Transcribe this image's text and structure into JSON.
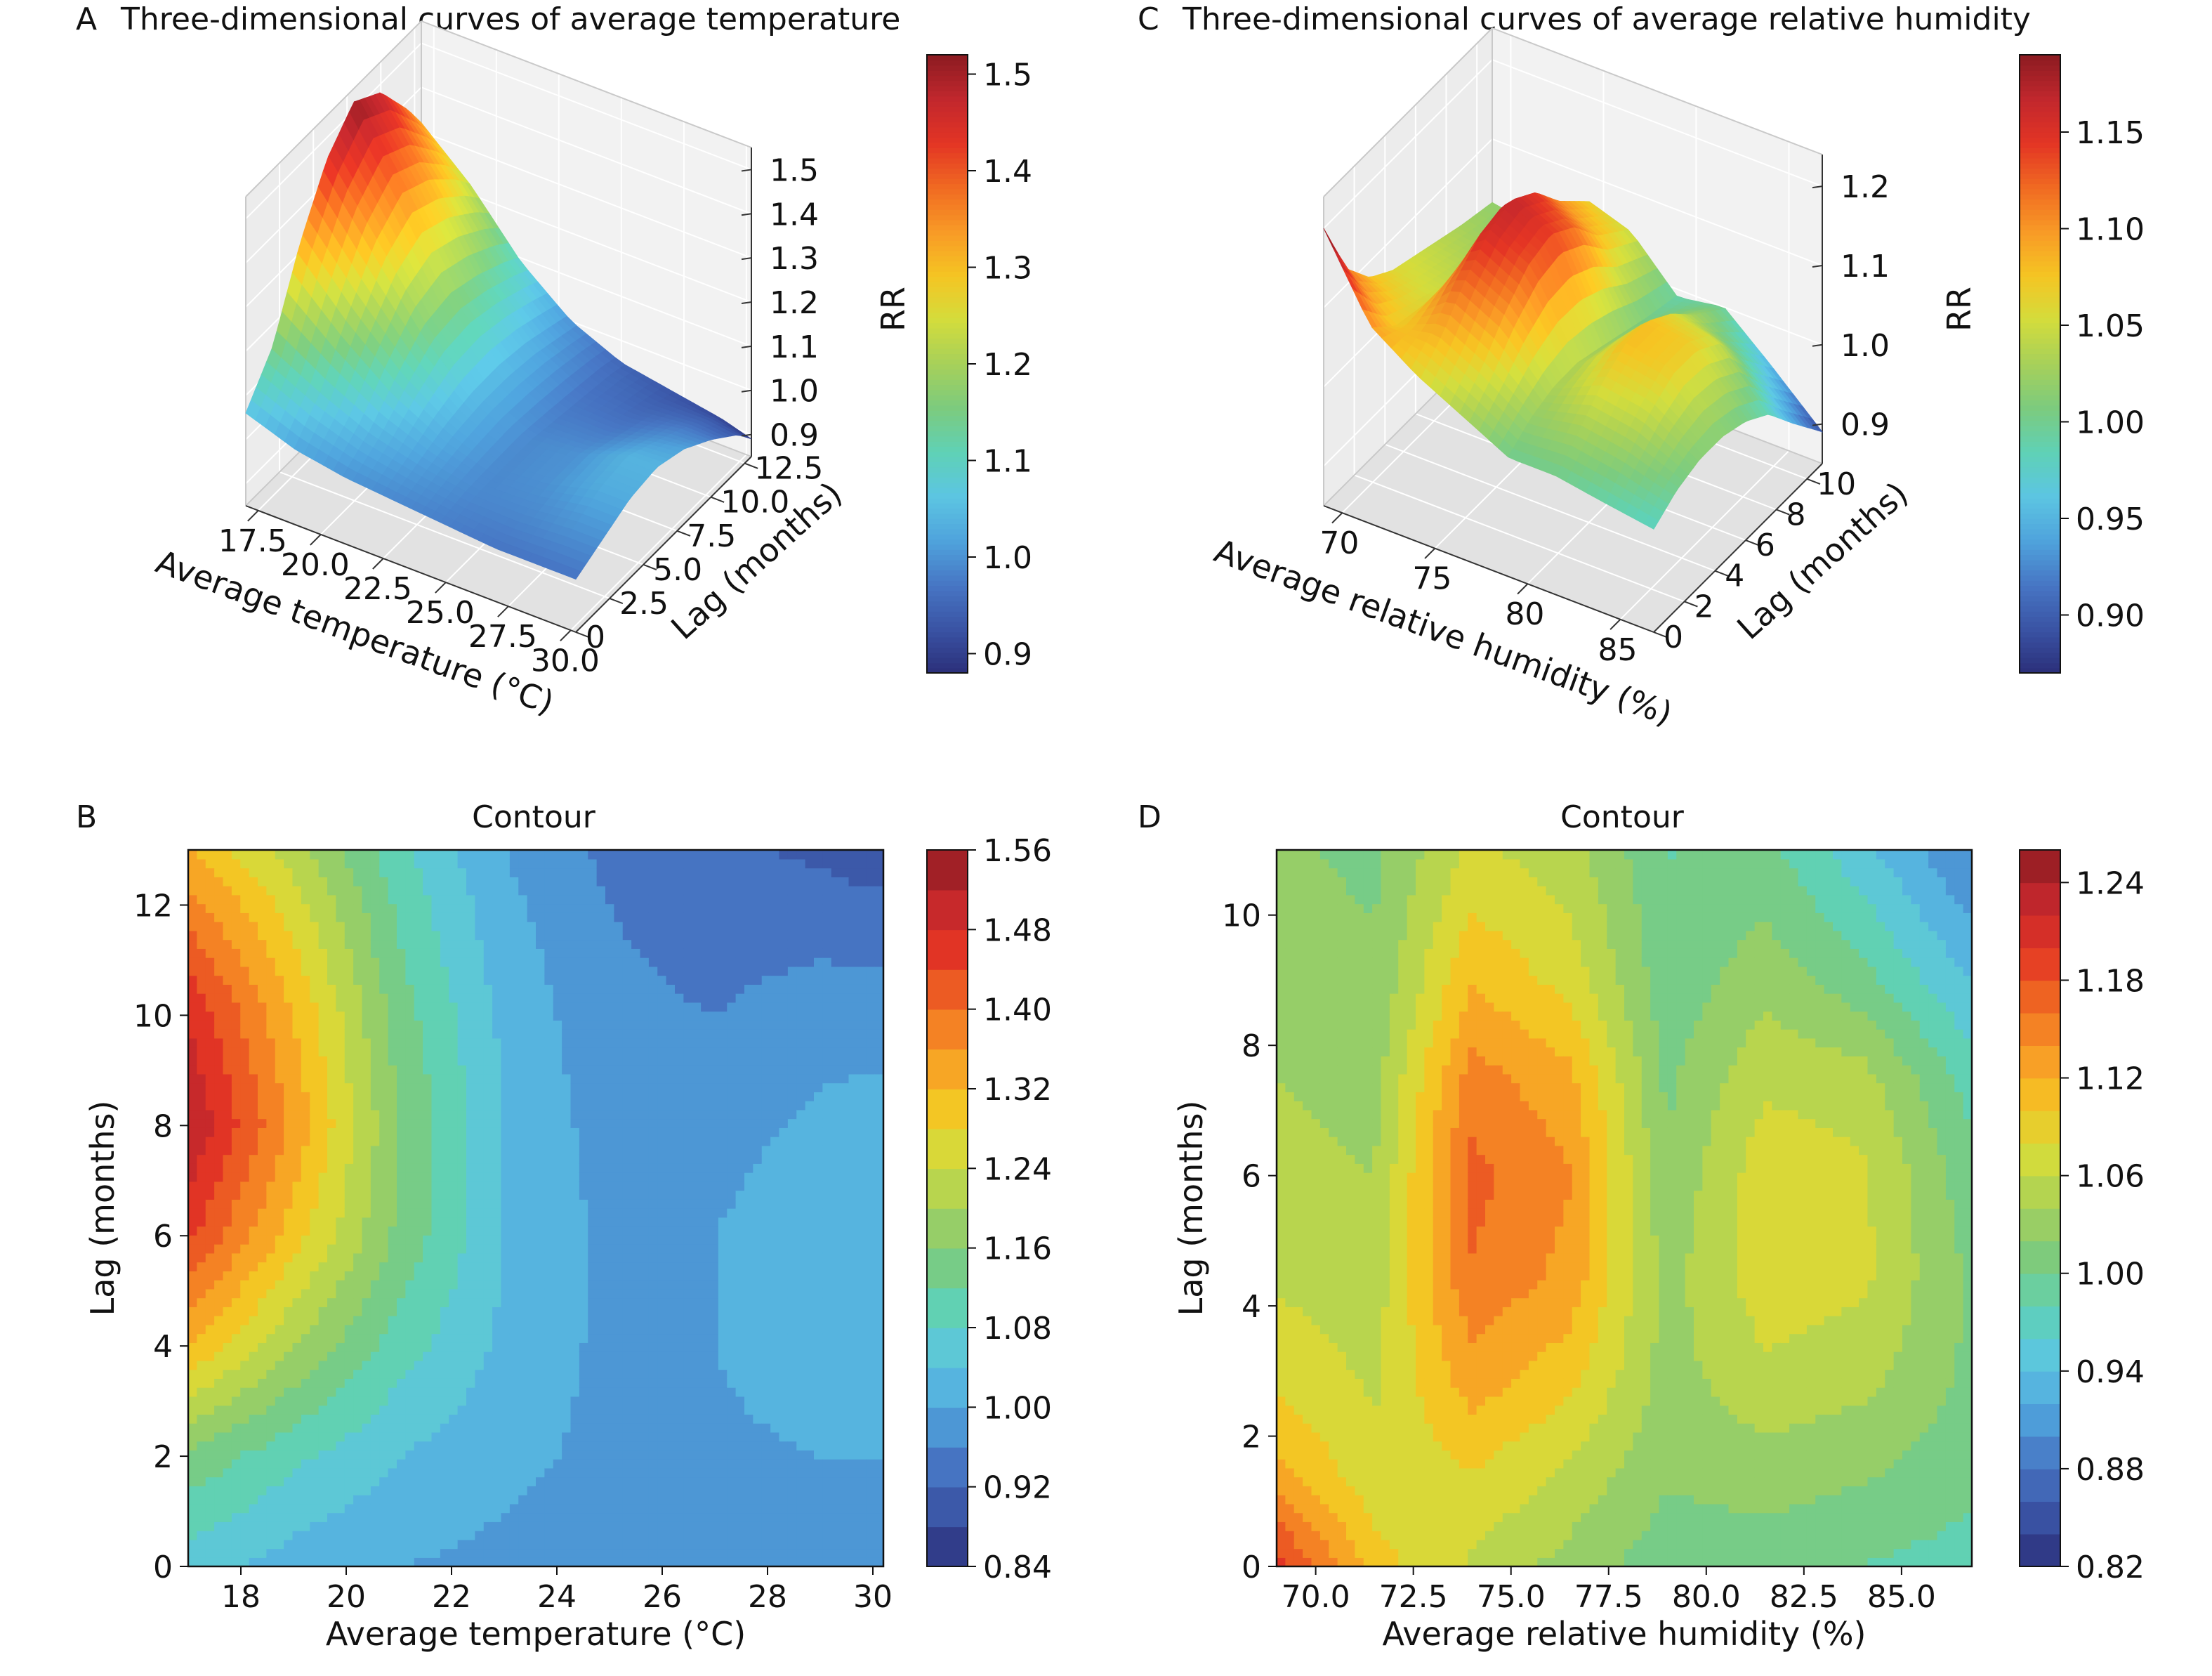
{
  "colormap": [
    "#2b2f7a",
    "#3a53a4",
    "#4776c4",
    "#4fa3dc",
    "#5cc5e2",
    "#5fd1b6",
    "#7ccb7e",
    "#a6d05a",
    "#d3dc3c",
    "#f5c523",
    "#f89a26",
    "#f06a22",
    "#e33524",
    "#c1272d",
    "#8c1b21"
  ],
  "panels": {
    "A": {
      "letter": "A",
      "title": "Three-dimensional curves of average temperature"
    },
    "B": {
      "letter": "B",
      "title": "Contour"
    },
    "C": {
      "letter": "C",
      "title": "Three-dimensional curves of average relative humidity"
    },
    "D": {
      "letter": "D",
      "title": "Contour"
    }
  },
  "chart_data": [
    {
      "id": "A",
      "type": "surface3d",
      "title": "Three-dimensional curves of average temperature",
      "xlabel": "Average temperature (°C)",
      "ylabel": "Lag (months)",
      "zlabel": "RR",
      "x_ticks": [
        "17.5",
        "20.0",
        "22.5",
        "25.0",
        "27.5",
        "30.0"
      ],
      "y_ticks": [
        "0",
        "2.5",
        "5.0",
        "7.5",
        "10.0",
        "12.5"
      ],
      "z_ticks": [
        "0.9",
        "1.0",
        "1.1",
        "1.2",
        "1.3",
        "1.4",
        "1.5"
      ],
      "xlim": [
        17,
        30.2
      ],
      "ylim": [
        0,
        13
      ],
      "zlim": [
        0.85,
        1.55
      ],
      "colorbar": {
        "ticks": [
          "0.9",
          "1.0",
          "1.1",
          "1.2",
          "1.3",
          "1.4",
          "1.5"
        ],
        "range": [
          0.88,
          1.52
        ]
      },
      "surface": {
        "x": [
          17,
          19,
          21,
          23,
          25,
          27,
          29,
          30.2
        ],
        "y": [
          0,
          2,
          4,
          6,
          8,
          10,
          12,
          13
        ],
        "z": [
          [
            1.06,
            1.15,
            1.32,
            1.45,
            1.52,
            1.48,
            1.38,
            1.32
          ],
          [
            1.02,
            1.09,
            1.2,
            1.3,
            1.35,
            1.32,
            1.26,
            1.22
          ],
          [
            1.0,
            1.04,
            1.1,
            1.15,
            1.16,
            1.14,
            1.11,
            1.09
          ],
          [
            0.99,
            1.01,
            1.03,
            1.04,
            1.04,
            1.03,
            1.01,
            1.0
          ],
          [
            0.98,
            0.99,
            0.99,
            0.99,
            0.98,
            0.97,
            0.96,
            0.95
          ],
          [
            0.97,
            0.99,
            1.0,
            1.0,
            0.98,
            0.96,
            0.94,
            0.93
          ],
          [
            0.97,
            1.0,
            1.03,
            1.04,
            1.01,
            0.98,
            0.94,
            0.91
          ],
          [
            0.97,
            1.0,
            1.03,
            1.04,
            1.02,
            0.98,
            0.93,
            0.89
          ]
        ]
      }
    },
    {
      "id": "B",
      "type": "contour",
      "title": "Contour",
      "xlabel": "Average temperature (°C)",
      "ylabel": "Lag (months)",
      "x_ticks": [
        "18",
        "20",
        "22",
        "24",
        "26",
        "28",
        "30"
      ],
      "y_ticks": [
        "0",
        "2",
        "4",
        "6",
        "8",
        "10",
        "12"
      ],
      "xlim": [
        17,
        30.2
      ],
      "ylim": [
        0,
        13
      ],
      "colorbar": {
        "ticks": [
          "0.84",
          "0.92",
          "1.00",
          "1.08",
          "1.16",
          "1.24",
          "1.32",
          "1.40",
          "1.48",
          "1.56"
        ],
        "range": [
          0.84,
          1.56
        ]
      },
      "grid": {
        "x": [
          17,
          19,
          21,
          23,
          25,
          27,
          29,
          30.2
        ],
        "y": [
          0,
          2,
          4,
          6,
          8,
          10,
          12,
          13
        ],
        "z": [
          [
            1.06,
            1.15,
            1.32,
            1.45,
            1.52,
            1.48,
            1.38,
            1.32
          ],
          [
            1.02,
            1.09,
            1.2,
            1.3,
            1.35,
            1.32,
            1.26,
            1.22
          ],
          [
            1.0,
            1.04,
            1.1,
            1.15,
            1.16,
            1.14,
            1.11,
            1.09
          ],
          [
            0.99,
            1.01,
            1.03,
            1.04,
            1.04,
            1.03,
            1.01,
            1.0
          ],
          [
            0.98,
            0.99,
            0.99,
            0.99,
            0.98,
            0.97,
            0.96,
            0.95
          ],
          [
            0.97,
            0.99,
            1.0,
            1.0,
            0.98,
            0.96,
            0.94,
            0.93
          ],
          [
            0.97,
            1.0,
            1.03,
            1.04,
            1.01,
            0.98,
            0.94,
            0.91
          ],
          [
            0.97,
            1.0,
            1.03,
            1.04,
            1.02,
            0.98,
            0.93,
            0.89
          ]
        ]
      }
    },
    {
      "id": "C",
      "type": "surface3d",
      "title": "Three-dimensional curves of average relative humidity",
      "xlabel": "Average relative humidity (%)",
      "ylabel": "Lag (months)",
      "zlabel": "RR",
      "x_ticks": [
        "70",
        "75",
        "80",
        "85"
      ],
      "y_ticks": [
        "0",
        "2",
        "4",
        "6",
        "8",
        "10"
      ],
      "z_ticks": [
        "0.9",
        "1.0",
        "1.1",
        "1.2"
      ],
      "xlim": [
        69,
        86.8
      ],
      "ylim": [
        0,
        11
      ],
      "zlim": [
        0.85,
        1.24
      ],
      "colorbar": {
        "ticks": [
          "0.90",
          "0.95",
          "1.00",
          "1.05",
          "1.10",
          "1.15"
        ],
        "range": [
          0.87,
          1.19
        ]
      },
      "surface": {
        "x": [
          69,
          71.5,
          74,
          76.5,
          79,
          81.5,
          84,
          86.8
        ],
        "y": [
          0,
          1.5,
          3,
          4.5,
          6,
          7.5,
          9,
          11
        ],
        "z": [
          [
            1.2,
            1.12,
            1.08,
            1.06,
            1.05,
            1.04,
            1.03,
            1.02
          ],
          [
            1.1,
            1.07,
            1.06,
            1.05,
            1.04,
            1.03,
            1.02,
            1.01
          ],
          [
            1.06,
            1.09,
            1.13,
            1.16,
            1.17,
            1.15,
            1.11,
            1.07
          ],
          [
            1.03,
            1.06,
            1.1,
            1.13,
            1.14,
            1.12,
            1.08,
            1.05
          ],
          [
            1.0,
            1.02,
            1.03,
            1.03,
            1.02,
            1.01,
            1.0,
            0.99
          ],
          [
            1.0,
            1.03,
            1.06,
            1.08,
            1.08,
            1.06,
            1.03,
            1.0
          ],
          [
            0.99,
            1.02,
            1.05,
            1.07,
            1.07,
            1.05,
            1.0,
            0.95
          ],
          [
            0.98,
            1.0,
            1.01,
            1.01,
            1.0,
            0.98,
            0.94,
            0.89
          ]
        ]
      }
    },
    {
      "id": "D",
      "type": "contour",
      "title": "Contour",
      "xlabel": "Average relative humidity (%)",
      "ylabel": "Lag (months)",
      "x_ticks": [
        "70.0",
        "72.5",
        "75.0",
        "77.5",
        "80.0",
        "82.5",
        "85.0"
      ],
      "y_ticks": [
        "0",
        "2",
        "4",
        "6",
        "8",
        "10"
      ],
      "xlim": [
        69,
        86.8
      ],
      "ylim": [
        0,
        11
      ],
      "colorbar": {
        "ticks": [
          "0.82",
          "0.88",
          "0.94",
          "1.00",
          "1.06",
          "1.12",
          "1.18",
          "1.24"
        ],
        "range": [
          0.82,
          1.26
        ]
      },
      "grid": {
        "x": [
          69,
          71.5,
          74,
          76.5,
          79,
          81.5,
          84,
          86.8
        ],
        "y": [
          0,
          1.5,
          3,
          4.5,
          6,
          7.5,
          9,
          11
        ],
        "z": [
          [
            1.2,
            1.12,
            1.08,
            1.06,
            1.05,
            1.04,
            1.03,
            1.02
          ],
          [
            1.1,
            1.07,
            1.06,
            1.05,
            1.04,
            1.03,
            1.02,
            1.01
          ],
          [
            1.06,
            1.09,
            1.13,
            1.16,
            1.17,
            1.15,
            1.11,
            1.07
          ],
          [
            1.03,
            1.06,
            1.1,
            1.13,
            1.14,
            1.12,
            1.08,
            1.05
          ],
          [
            1.0,
            1.02,
            1.03,
            1.03,
            1.02,
            1.01,
            1.0,
            0.99
          ],
          [
            1.0,
            1.03,
            1.06,
            1.08,
            1.08,
            1.06,
            1.03,
            1.0
          ],
          [
            0.99,
            1.02,
            1.05,
            1.07,
            1.07,
            1.05,
            1.0,
            0.95
          ],
          [
            0.98,
            1.0,
            1.01,
            1.01,
            1.0,
            0.98,
            0.94,
            0.89
          ]
        ]
      }
    }
  ]
}
